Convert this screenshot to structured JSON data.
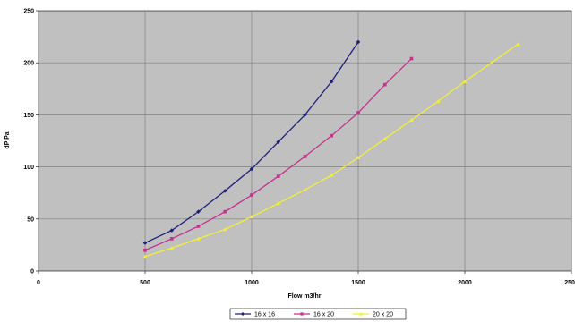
{
  "chart_data": {
    "type": "line",
    "title": "",
    "xlabel": "Flow m3/hr",
    "ylabel": "dP Pa",
    "xlim": [
      0,
      2500
    ],
    "ylim": [
      0,
      250
    ],
    "xticks": [
      0,
      500,
      1000,
      1500,
      2000,
      2500
    ],
    "yticks": [
      0,
      50,
      100,
      150,
      200,
      250
    ],
    "grid": true,
    "legend_position": "bottom",
    "background": "#c0c0c0",
    "series": [
      {
        "name": "16 x 16",
        "color": "#1f1f7a",
        "marker": "diamond",
        "x": [
          500,
          625,
          750,
          875,
          1000,
          1125,
          1250,
          1375,
          1500
        ],
        "y": [
          27,
          39,
          57,
          77,
          98,
          124,
          150,
          182,
          220
        ]
      },
      {
        "name": "16 x 20",
        "color": "#c4318f",
        "marker": "square",
        "x": [
          500,
          625,
          750,
          875,
          1000,
          1125,
          1250,
          1375,
          1500,
          1625,
          1750
        ],
        "y": [
          20,
          31,
          43,
          57,
          73,
          91,
          110,
          130,
          152,
          179,
          204
        ]
      },
      {
        "name": "20 x 20",
        "color": "#f2ee36",
        "marker": "triangle",
        "x": [
          500,
          625,
          750,
          875,
          1000,
          1125,
          1250,
          1375,
          1500,
          1625,
          1750,
          1875,
          2000,
          2125,
          2250
        ],
        "y": [
          14,
          22,
          31,
          40,
          52,
          65,
          78,
          92,
          109,
          127,
          145,
          163,
          182,
          200,
          218
        ]
      }
    ]
  }
}
